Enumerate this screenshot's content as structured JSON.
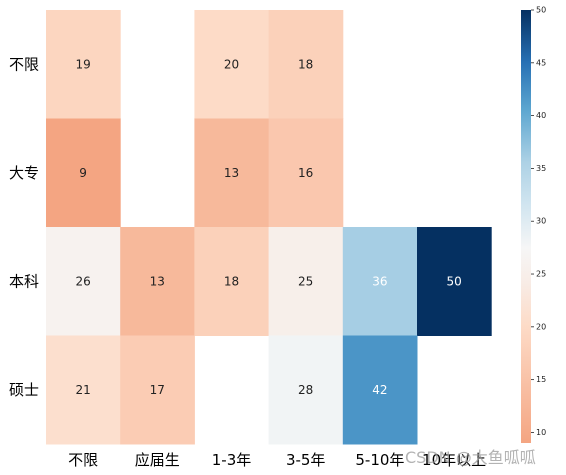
{
  "chart_data": {
    "type": "heatmap",
    "rows": [
      "不限",
      "大专",
      "本科",
      "硕士"
    ],
    "columns": [
      "不限",
      "应届生",
      "1-3年",
      "3-5年",
      "5-10年",
      "10年以上"
    ],
    "values": [
      [
        19,
        null,
        20,
        18,
        null,
        null
      ],
      [
        9,
        null,
        13,
        16,
        null,
        null
      ],
      [
        26,
        13,
        18,
        25,
        36,
        50
      ],
      [
        21,
        17,
        null,
        28,
        42,
        null
      ]
    ],
    "colorbar": {
      "min": 9,
      "max": 50,
      "center": 20,
      "ticks": [
        10,
        15,
        20,
        25,
        30,
        35,
        40,
        45,
        50
      ],
      "colormap": "RdBu (reversed, diverging)"
    },
    "annotations": true
  },
  "watermark": "CSDN @大鱼呱呱"
}
